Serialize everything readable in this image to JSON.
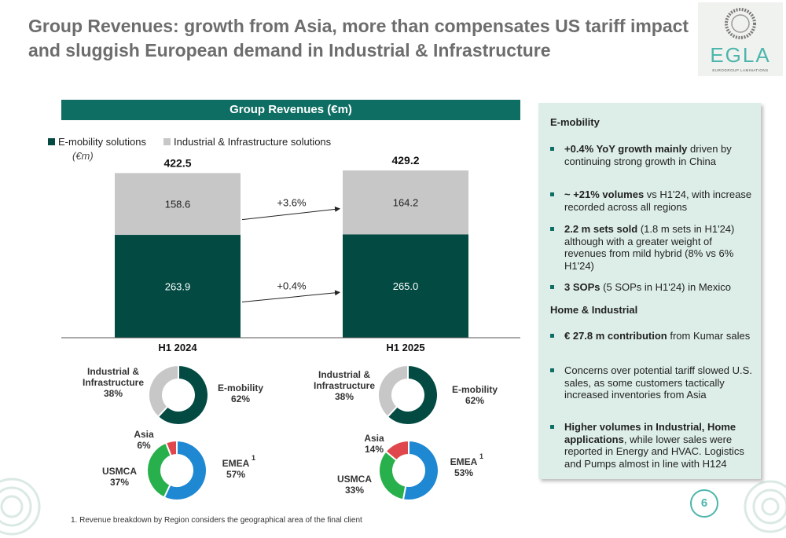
{
  "title": "Group Revenues: growth from Asia, more than compensates US tariff impact and sluggish European demand in Industrial & Infrastructure",
  "logo": {
    "brand": "EGLA",
    "tagline": "EUROGROUP LAMINATIONS"
  },
  "colors": {
    "emobility": "#024a42",
    "industrial": "#c7c7c7",
    "emea": "#1e88d3",
    "usmca": "#27b04b",
    "asia": "#e0474c",
    "accent": "#0e6e63"
  },
  "chart_data": [
    {
      "type": "bar",
      "stacked": true,
      "title": "Group Revenues (€m)",
      "unit_label": "(€m)",
      "categories": [
        "H1 2024",
        "H1 2025"
      ],
      "totals": [
        "422.5",
        "429.2"
      ],
      "series": [
        {
          "name": "E-mobility solutions",
          "values": [
            263.9,
            265.0
          ],
          "labels": [
            "263.9",
            "265.0"
          ],
          "growth": "+0.4%"
        },
        {
          "name": "Industrial & Infrastructure solutions",
          "values": [
            158.6,
            164.2
          ],
          "labels": [
            "158.6",
            "164.2"
          ],
          "growth": "+3.6%"
        }
      ],
      "ylim": [
        0,
        430
      ]
    },
    {
      "type": "pie",
      "variant": "donut",
      "period": "H1 2024",
      "slices": [
        {
          "label": "E-mobility",
          "value": 62,
          "pct": "62%"
        },
        {
          "label": "Industrial & Infrastructure",
          "value": 38,
          "pct": "38%"
        }
      ]
    },
    {
      "type": "pie",
      "variant": "donut",
      "period": "H1 2025",
      "slices": [
        {
          "label": "E-mobility",
          "value": 62,
          "pct": "62%"
        },
        {
          "label": "Industrial & Infrastructure",
          "value": 38,
          "pct": "38%"
        }
      ]
    },
    {
      "type": "pie",
      "variant": "donut",
      "period": "H1 2024",
      "slices": [
        {
          "label": "EMEA",
          "value": 57,
          "pct": "57%",
          "note": "1"
        },
        {
          "label": "USMCA",
          "value": 37,
          "pct": "37%"
        },
        {
          "label": "Asia",
          "value": 6,
          "pct": "6%"
        }
      ]
    },
    {
      "type": "pie",
      "variant": "donut",
      "period": "H1 2025",
      "slices": [
        {
          "label": "EMEA",
          "value": 53,
          "pct": "53%",
          "note": "1"
        },
        {
          "label": "USMCA",
          "value": 33,
          "pct": "33%"
        },
        {
          "label": "Asia",
          "value": 14,
          "pct": "14%"
        }
      ]
    }
  ],
  "side_panel": {
    "sections": [
      {
        "heading": "E-mobility",
        "bullets": [
          {
            "bold": "+0.4% YoY growth mainly",
            "text": " driven by continuing strong growth in China"
          },
          {
            "bold": "~ +21% volumes",
            "text": " vs H1'24, with increase recorded across all regions"
          },
          {
            "bold": "2.2 m sets sold",
            "text": " (1.8 m sets in H1'24) although with a greater weight of revenues from mild hybrid (8% vs 6% H1'24)"
          },
          {
            "bold": "3 SOPs",
            "text": " (5 SOPs in H1'24) in Mexico"
          }
        ]
      },
      {
        "heading": "Home & Industrial",
        "bullets": [
          {
            "bold": "€ 27.8 m contribution",
            "text": " from Kumar sales"
          },
          {
            "bold": "",
            "text": "Concerns over potential tariff slowed U.S. sales, as some customers tactically increased inventories from Asia"
          },
          {
            "bold": "Higher volumes in Industrial, Home applications",
            "text": ", while lower sales were reported in Energy and HVAC. Logistics and Pumps almost in line with H124"
          }
        ]
      }
    ]
  },
  "footnote": "1. Revenue breakdown by Region considers the geographical area of the final client",
  "page_number": "6"
}
